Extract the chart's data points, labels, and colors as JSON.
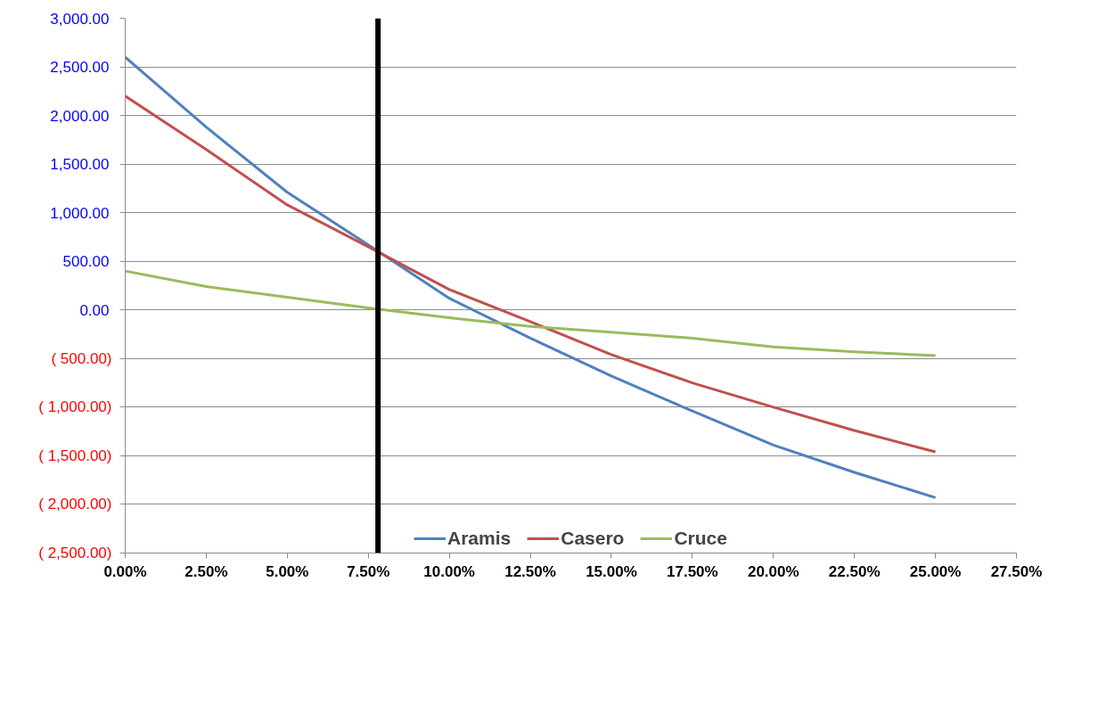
{
  "chart_data": {
    "type": "line",
    "x": [
      0,
      2.5,
      5,
      7.5,
      10,
      12.5,
      15,
      17.5,
      20,
      22.5,
      25
    ],
    "series": [
      {
        "name": "Aramis",
        "color": "#4f81bd",
        "values": [
          2600,
          1880,
          1210,
          670,
          120,
          -290,
          -680,
          -1040,
          -1390,
          -1670,
          -1930
        ]
      },
      {
        "name": "Casero",
        "color": "#c0504d",
        "values": [
          2200,
          1650,
          1080,
          650,
          210,
          -120,
          -460,
          -750,
          -1000,
          -1240,
          -1460
        ]
      },
      {
        "name": "Cruce",
        "color": "#9bbb59",
        "values": [
          400,
          240,
          130,
          20,
          -80,
          -170,
          -230,
          -290,
          -380,
          -430,
          -470
        ]
      }
    ],
    "xlim": [
      0,
      27.5
    ],
    "xticks": [
      {
        "value": 0,
        "label": "0.00%"
      },
      {
        "value": 2.5,
        "label": "2.50%"
      },
      {
        "value": 5,
        "label": "5.00%"
      },
      {
        "value": 7.5,
        "label": "7.50%"
      },
      {
        "value": 10,
        "label": "10.00%"
      },
      {
        "value": 12.5,
        "label": "12.50%"
      },
      {
        "value": 15,
        "label": "15.00%"
      },
      {
        "value": 17.5,
        "label": "17.50%"
      },
      {
        "value": 20,
        "label": "20.00%"
      },
      {
        "value": 22.5,
        "label": "22.50%"
      },
      {
        "value": 25,
        "label": "25.00%"
      },
      {
        "value": 27.5,
        "label": "27.50%"
      }
    ],
    "ylim": [
      -2500,
      3000
    ],
    "yticks": [
      {
        "value": 3000,
        "label": "3,000.00"
      },
      {
        "value": 2500,
        "label": "2,500.00"
      },
      {
        "value": 2000,
        "label": "2,000.00"
      },
      {
        "value": 1500,
        "label": "1,500.00"
      },
      {
        "value": 1000,
        "label": "1,000.00"
      },
      {
        "value": 500,
        "label": "500.00"
      },
      {
        "value": 0,
        "label": "0.00"
      },
      {
        "value": -500,
        "label": "( 500.00)"
      },
      {
        "value": -1000,
        "label": "( 1,000.00)"
      },
      {
        "value": -1500,
        "label": "( 1,500.00)"
      },
      {
        "value": -2000,
        "label": "( 2,000.00)"
      },
      {
        "value": -2500,
        "label": "( 2,500.00)"
      }
    ],
    "grid": "y",
    "legend": "bottom",
    "line_style": "solid",
    "ref_lines": [
      {
        "axis": "x",
        "value": 7.8,
        "color": "#000000"
      }
    ]
  }
}
